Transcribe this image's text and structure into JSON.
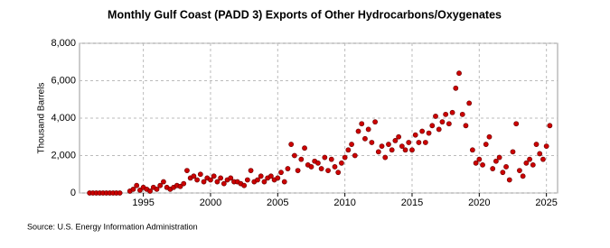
{
  "chart_data": {
    "type": "scatter",
    "title": "Monthly Gulf Coast (PADD 3) Exports of Other Hydrocarbons/Oxygenates",
    "ylabel": "Thousand Barrels",
    "source": "Source: U.S. Energy Information Administration",
    "color": "#cc0000",
    "grid": true,
    "xlim": [
      1990.25,
      2025.83
    ],
    "xticks": [
      1995,
      2000,
      2005,
      2010,
      2015,
      2020,
      2025
    ],
    "ylim": [
      0,
      8000
    ],
    "yticks": [
      0,
      {
        "value": 2000,
        "label": "2,000"
      },
      {
        "value": 4000,
        "label": "4,000"
      },
      {
        "value": 6000,
        "label": "6,000"
      },
      {
        "value": 8000,
        "label": "8,000"
      }
    ],
    "x": [
      1991,
      1991.25,
      1991.5,
      1991.75,
      1992,
      1992.25,
      1992.5,
      1992.75,
      1993,
      1993.25,
      1994,
      1994.25,
      1994.5,
      1994.75,
      1995,
      1995.25,
      1995.5,
      1995.75,
      1996,
      1996.25,
      1996.5,
      1996.75,
      1997,
      1997.25,
      1997.5,
      1997.75,
      1998,
      1998.25,
      1998.5,
      1998.75,
      1999,
      1999.25,
      1999.5,
      1999.75,
      2000,
      2000.25,
      2000.5,
      2000.75,
      2001,
      2001.25,
      2001.5,
      2001.75,
      2002,
      2002.25,
      2002.5,
      2002.75,
      2003,
      2003.25,
      2003.5,
      2003.75,
      2004,
      2004.25,
      2004.5,
      2004.75,
      2005,
      2005.25,
      2005.5,
      2005.75,
      2006,
      2006.25,
      2006.5,
      2006.75,
      2007,
      2007.25,
      2007.5,
      2007.75,
      2008,
      2008.25,
      2008.5,
      2008.75,
      2009,
      2009.25,
      2009.5,
      2009.75,
      2010,
      2010.25,
      2010.5,
      2010.75,
      2011,
      2011.25,
      2011.5,
      2011.75,
      2012,
      2012.25,
      2012.5,
      2012.75,
      2013,
      2013.25,
      2013.5,
      2013.75,
      2014,
      2014.25,
      2014.5,
      2014.75,
      2015,
      2015.25,
      2015.5,
      2015.75,
      2016,
      2016.25,
      2016.5,
      2016.75,
      2017,
      2017.25,
      2017.5,
      2017.75,
      2018,
      2018.25,
      2018.5,
      2018.75,
      2019,
      2019.25,
      2019.5,
      2019.75,
      2020,
      2020.25,
      2020.5,
      2020.75,
      2021,
      2021.25,
      2021.5,
      2021.75,
      2022,
      2022.25,
      2022.5,
      2022.75,
      2023,
      2023.25,
      2023.5,
      2023.75,
      2024,
      2024.25,
      2024.5,
      2024.75,
      2025,
      2025.25
    ],
    "values": [
      0,
      0,
      0,
      0,
      0,
      0,
      0,
      0,
      0,
      0,
      100,
      200,
      400,
      150,
      300,
      200,
      100,
      300,
      200,
      400,
      600,
      300,
      200,
      300,
      400,
      350,
      500,
      1200,
      800,
      900,
      700,
      1000,
      600,
      800,
      700,
      900,
      600,
      800,
      500,
      700,
      800,
      600,
      600,
      500,
      400,
      700,
      1200,
      600,
      700,
      900,
      600,
      800,
      900,
      700,
      800,
      1100,
      600,
      1300,
      2600,
      2000,
      1200,
      1800,
      2400,
      1500,
      1400,
      1700,
      1600,
      1300,
      1900,
      1200,
      1800,
      1400,
      1100,
      1600,
      1900,
      2300,
      2600,
      2000,
      3300,
      3700,
      2900,
      3400,
      2700,
      3800,
      2200,
      2500,
      1900,
      2600,
      2300,
      2800,
      3000,
      2500,
      2300,
      2700,
      2300,
      3100,
      2700,
      3300,
      2700,
      3200,
      3600,
      4100,
      3400,
      3800,
      4200,
      3700,
      4300,
      5600,
      6400,
      4200,
      3600,
      4800,
      2300,
      1600,
      1800,
      1500,
      2600,
      3000,
      1300,
      1700,
      1900,
      1100,
      1400,
      700,
      2200,
      3700,
      1200,
      900,
      1600,
      1800,
      1500,
      2600,
      2100,
      1800,
      2500,
      3600
    ]
  }
}
